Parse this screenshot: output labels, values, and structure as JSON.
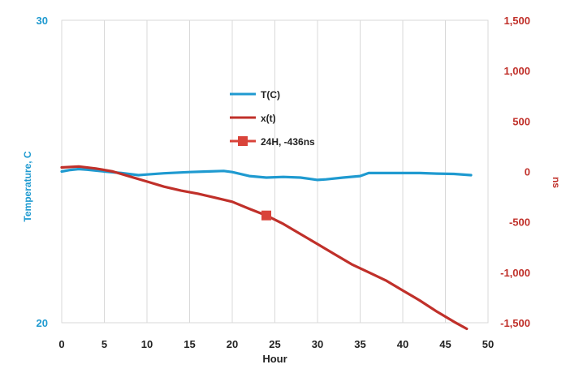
{
  "chart_data": {
    "type": "line",
    "title": "",
    "xlabel": "Hour",
    "ylabel_left": "Temperature, C",
    "ylabel_right": "ns",
    "xlim": [
      0,
      50
    ],
    "xticks": [
      0,
      5,
      10,
      15,
      20,
      25,
      30,
      35,
      40,
      45,
      50
    ],
    "ylim_left": [
      20,
      30
    ],
    "yticks_left": [
      {
        "v": 20,
        "label": "20"
      },
      {
        "v": 30,
        "label": "30"
      }
    ],
    "ylim_right": [
      -1500,
      1500
    ],
    "yticks_right": [
      {
        "v": 1500,
        "label": "1,500"
      },
      {
        "v": 1000,
        "label": "1,000"
      },
      {
        "v": 500,
        "label": "500"
      },
      {
        "v": 0,
        "label": "0"
      },
      {
        "v": -500,
        "label": "-500"
      },
      {
        "v": -1000,
        "label": "-1,000"
      },
      {
        "v": -1500,
        "label": "-1,500"
      }
    ],
    "grid": "vertical",
    "legend_position": "upper-center",
    "series": [
      {
        "name": "T(C)",
        "axis": "left",
        "color": "#1f9ad0",
        "x": [
          0,
          1,
          2,
          3,
          5,
          7,
          9,
          10,
          12,
          15,
          17,
          19,
          20,
          22,
          24,
          26,
          28,
          30,
          31,
          33,
          35,
          36,
          38,
          40,
          42,
          44,
          46,
          48
        ],
        "y": [
          25.0,
          25.05,
          25.08,
          25.06,
          25.0,
          24.95,
          24.88,
          24.9,
          24.94,
          24.98,
          25.0,
          25.02,
          24.98,
          24.85,
          24.8,
          24.82,
          24.8,
          24.72,
          24.74,
          24.8,
          24.85,
          24.95,
          24.95,
          24.95,
          24.95,
          24.93,
          24.92,
          24.88
        ]
      },
      {
        "name": "x(t)",
        "axis": "right",
        "color": "#c0302a",
        "x": [
          0,
          2,
          4,
          6,
          8,
          10,
          12,
          14,
          16,
          18,
          20,
          22,
          24,
          26,
          28,
          30,
          32,
          34,
          36,
          38,
          40,
          42,
          44,
          46,
          47.5
        ],
        "y": [
          40,
          50,
          30,
          0,
          -50,
          -100,
          -150,
          -190,
          -220,
          -260,
          -300,
          -370,
          -436,
          -520,
          -620,
          -720,
          -820,
          -920,
          -1000,
          -1080,
          -1180,
          -1280,
          -1390,
          -1490,
          -1560
        ]
      },
      {
        "name": "24H, -436ns",
        "axis": "right",
        "color": "#d9433a",
        "marker": "square",
        "x": [
          24
        ],
        "y": [
          -436
        ]
      }
    ]
  }
}
